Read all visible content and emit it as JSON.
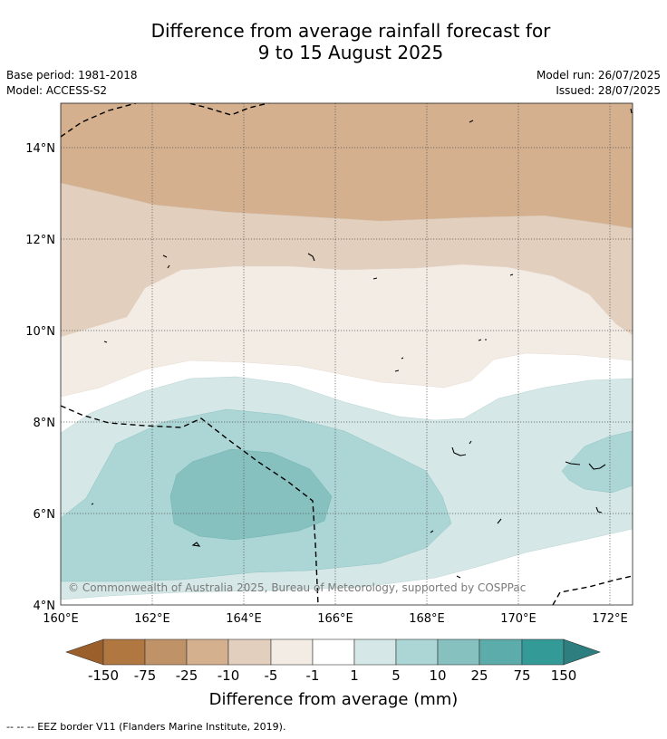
{
  "title": {
    "line1": "Difference from average rainfall forecast for",
    "line2": "9 to 15 August 2025"
  },
  "meta": {
    "base_period": "Base period: 1981-2018",
    "model": "Model: ACCESS-S2",
    "model_run": "Model run: 26/07/2025",
    "issued": "Issued: 28/07/2025"
  },
  "map": {
    "lon_ticks": [
      "160°E",
      "162°E",
      "164°E",
      "166°E",
      "168°E",
      "170°E",
      "172°E"
    ],
    "lat_ticks": [
      "4°N",
      "6°N",
      "8°N",
      "10°N",
      "12°N",
      "14°N"
    ],
    "lon_range": [
      160,
      172.5
    ],
    "lat_range": [
      4,
      15
    ],
    "gridlines": true,
    "copyright": "© Commonwealth of Australia 2025, Bureau of Meteorology, supported by COSPPac"
  },
  "colorbar": {
    "labels": [
      "-150",
      "-75",
      "-25",
      "-10",
      "-5",
      "-1",
      "1",
      "5",
      "10",
      "25",
      "75",
      "150"
    ],
    "colors": [
      "#9b5f2c",
      "#b07840",
      "#c09268",
      "#d4b08e",
      "#e3cfbd",
      "#f3ece5",
      "#ffffff",
      "#d5e8e7",
      "#acd6d5",
      "#86c1c0",
      "#5cacab",
      "#349a98",
      "#2c7f7e"
    ],
    "title": "Difference from average (mm)"
  },
  "footer": {
    "legend": "-- -- -- EEZ border V11 (Flanders Marine Institute, 2019)."
  }
}
